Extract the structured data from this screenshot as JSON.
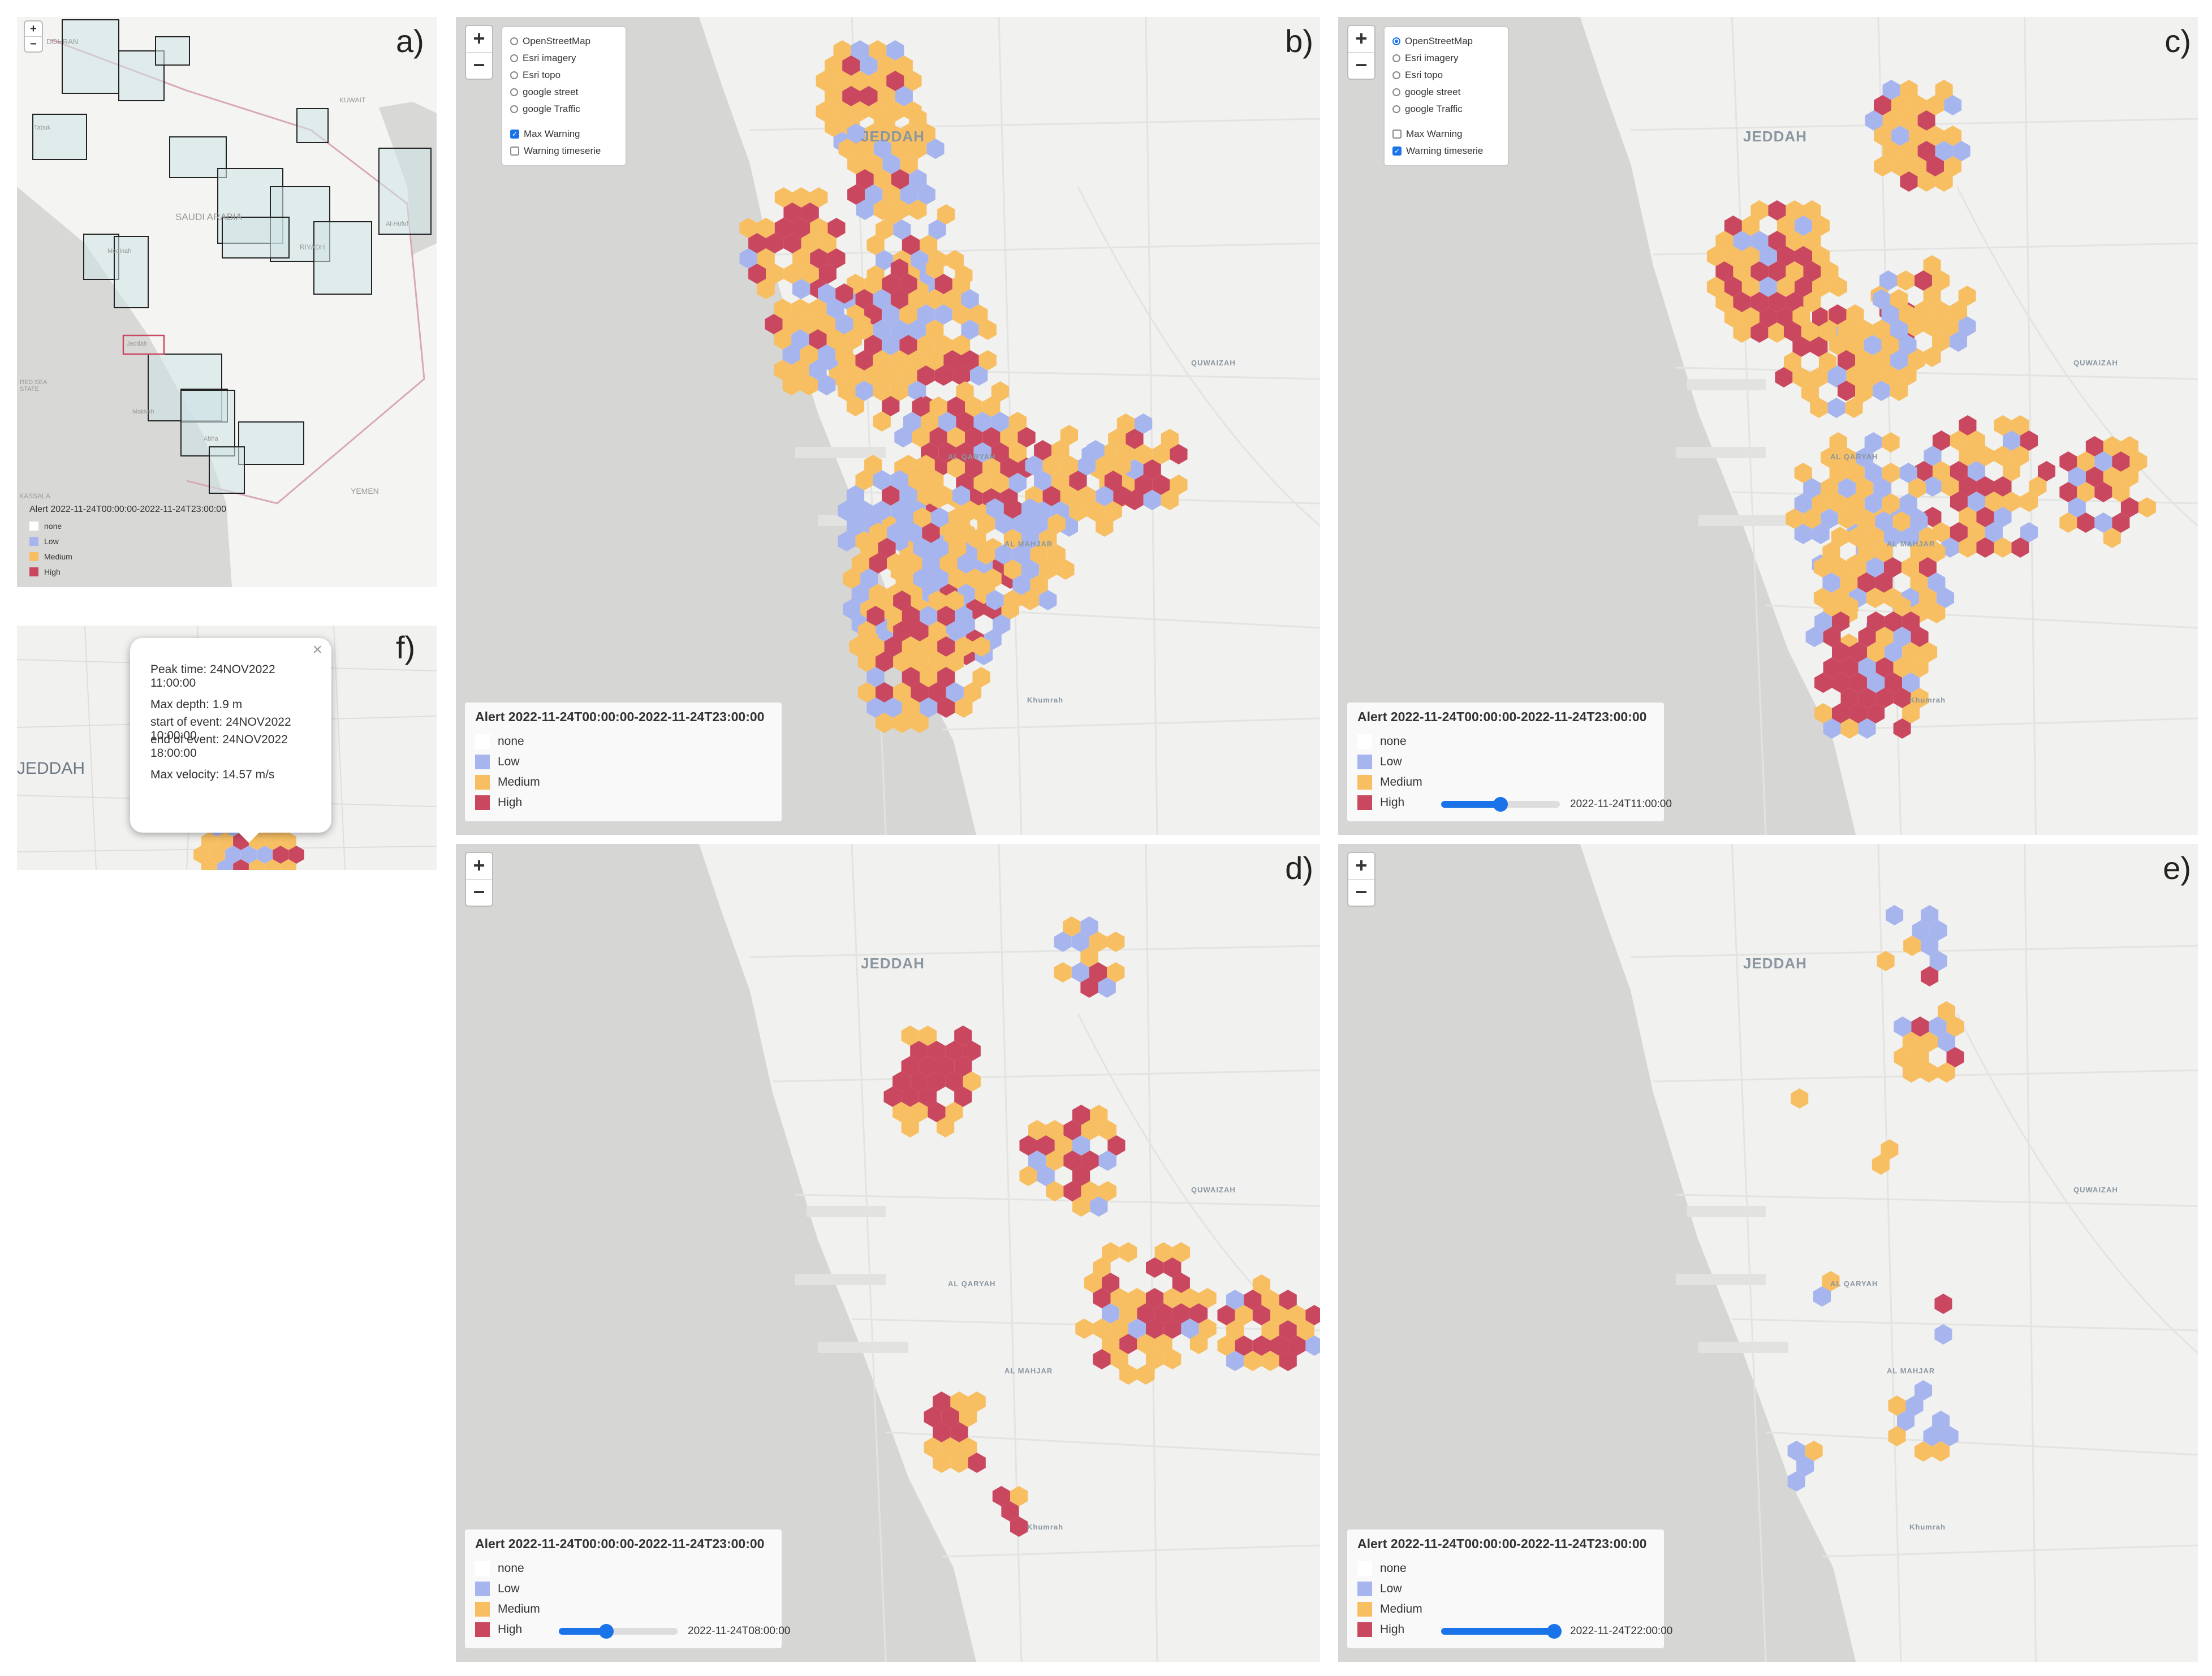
{
  "colors": {
    "none": "#ffffff",
    "low": "#a7b5ee",
    "medium": "#f7bf62",
    "high": "#c9475f",
    "sea": "#d4d4d2",
    "land": "#f3f3f1",
    "road": "#e0e0e0",
    "accent": "#1a73e8"
  },
  "zoom": {
    "in": "+",
    "out": "−"
  },
  "layers": {
    "basemaps": [
      "OpenStreetMap",
      "Esri imagery",
      "Esri topo",
      "google street",
      "google Traffic"
    ],
    "overlays": [
      "Max Warning",
      "Warning timeserie"
    ]
  },
  "map_labels": {
    "jeddah": "JEDDAH",
    "quwaizah": "QUWAIZAH",
    "al_qarinah": "AL QARYAH",
    "al_mahjar": "AL MAHJAR",
    "khumrah": "Khumrah"
  },
  "legend": {
    "title": "Alert 2022-11-24T00:00:00-2022-11-24T23:00:00",
    "items": [
      "none",
      "Low",
      "Medium",
      "High"
    ]
  },
  "panels": {
    "a": {
      "label": "a)",
      "places": [
        "DOHRAN",
        "Tabuk",
        "SAUDI ARABIA",
        "RIYADH",
        "Medinah",
        "Jeddah",
        "RED SEA STATE",
        "KASSALA",
        "YEMEN",
        "KUWAIT",
        "Al-Hufuf",
        "Makkah",
        "Abha"
      ],
      "icon_label": "icon-a",
      "legend_title": "Alert 2022-11-24T00:00:00-2022-11-24T23:00:00",
      "legend_items": [
        "none",
        "Low",
        "Medium",
        "High"
      ]
    },
    "b": {
      "label": "b)",
      "layer_selected": "",
      "overlay_checked": "Max Warning"
    },
    "c": {
      "label": "c)",
      "layer_selected": "OpenStreetMap",
      "overlay_checked": "Warning timeserie",
      "slider_time": "2022-11-24T11:00:00",
      "slider_fraction": 0.5
    },
    "d": {
      "label": "d)",
      "slider_time": "2022-11-24T08:00:00",
      "slider_fraction": 0.4
    },
    "e": {
      "label": "e)",
      "slider_time": "2022-11-24T22:00:00",
      "slider_fraction": 0.95
    },
    "f": {
      "label": "f)",
      "city": "JEDDAH",
      "popup": {
        "peak_time": "Peak time: 24NOV2022 11:00:00",
        "max_depth": "Max depth: 1.9 m",
        "start": "start of event: 24NOV2022 10:00:00",
        "end": "end of event: 24NOV2022 18:00:00",
        "max_velocity": "Max velocity: 14.57 m/s",
        "close": "×"
      }
    }
  }
}
